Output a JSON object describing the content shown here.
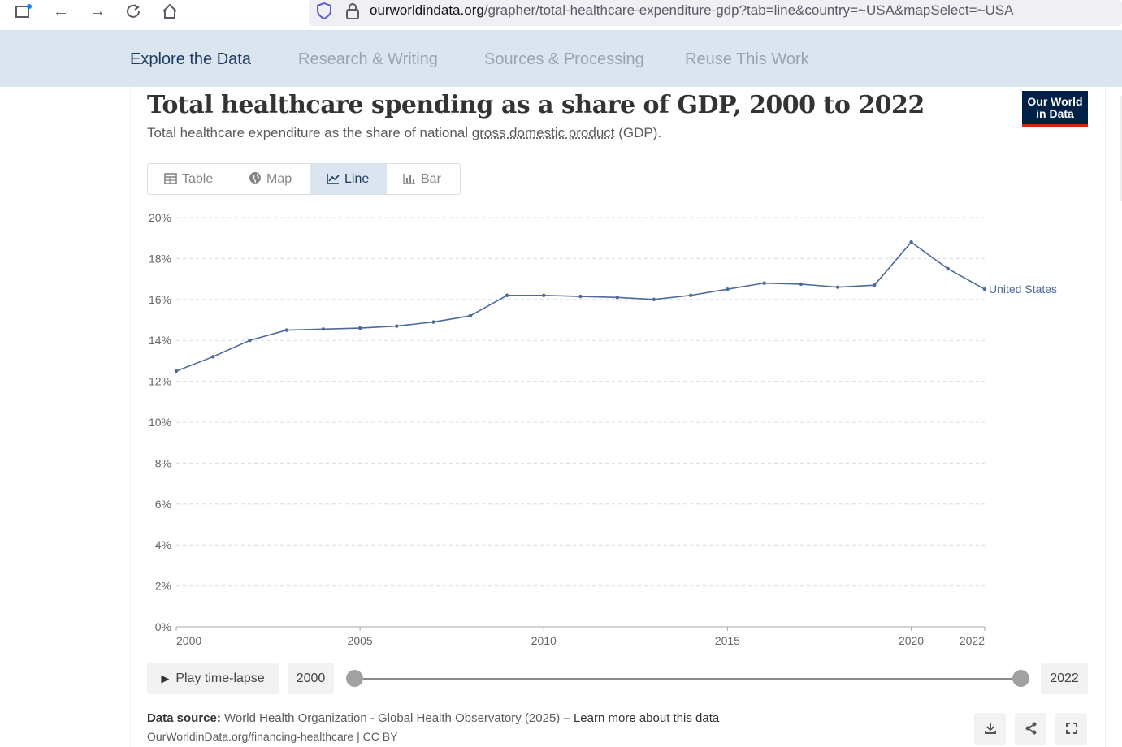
{
  "browser": {
    "url_host": "ourworldindata.org",
    "url_path": "/grapher/total-healthcare-expenditure-gdp?tab=line&country=~USA&mapSelect=~USA"
  },
  "site_nav": {
    "items": [
      {
        "label": "Explore the Data",
        "active": true
      },
      {
        "label": "Research & Writing",
        "active": false
      },
      {
        "label": "Sources & Processing",
        "active": false
      },
      {
        "label": "Reuse This Work",
        "active": false
      }
    ]
  },
  "header": {
    "title": "Total healthcare spending as a share of GDP, 2000 to 2022",
    "subtitle_pre": "Total healthcare expenditure as the share of national ",
    "subtitle_link": "gross domestic product",
    "subtitle_post": " (GDP).",
    "logo_line1": "Our World",
    "logo_line2": "in Data"
  },
  "tabs": [
    {
      "label": "Table",
      "icon": "table-icon",
      "active": false
    },
    {
      "label": "Map",
      "icon": "globe-icon",
      "active": false
    },
    {
      "label": "Line",
      "icon": "line-chart-icon",
      "active": true
    },
    {
      "label": "Bar",
      "icon": "bar-chart-icon",
      "active": false
    }
  ],
  "chart_data": {
    "type": "line",
    "title": "Total healthcare spending as a share of GDP, 2000 to 2022",
    "xlabel": "",
    "ylabel": "",
    "ylim": [
      0,
      20
    ],
    "xlim": [
      2000,
      2022
    ],
    "y_ticks": [
      0,
      2,
      4,
      6,
      8,
      10,
      12,
      14,
      16,
      18,
      20
    ],
    "y_tick_labels": [
      "0%",
      "2%",
      "4%",
      "6%",
      "8%",
      "10%",
      "12%",
      "14%",
      "16%",
      "18%",
      "20%"
    ],
    "x_ticks": [
      2000,
      2005,
      2010,
      2015,
      2020,
      2022
    ],
    "x_tick_labels": [
      "2000",
      "2005",
      "2010",
      "2015",
      "2020",
      "2022"
    ],
    "grid": true,
    "color": "#4c6a9c",
    "series": [
      {
        "name": "United States",
        "x": [
          2000,
          2001,
          2002,
          2003,
          2004,
          2005,
          2006,
          2007,
          2008,
          2009,
          2010,
          2011,
          2012,
          2013,
          2014,
          2015,
          2016,
          2017,
          2018,
          2019,
          2020,
          2021,
          2022
        ],
        "values": [
          12.5,
          13.2,
          14.0,
          14.5,
          14.55,
          14.6,
          14.7,
          14.9,
          15.2,
          16.2,
          16.2,
          16.15,
          16.1,
          16.0,
          16.2,
          16.5,
          16.8,
          16.75,
          16.6,
          16.7,
          18.8,
          17.5,
          16.5
        ]
      }
    ]
  },
  "timeline": {
    "play_label": "Play time-lapse",
    "start_year": "2000",
    "end_year": "2022"
  },
  "footer": {
    "source_label": "Data source:",
    "source_text": " World Health Organization - Global Health Observatory (2025) – ",
    "learn_more": "Learn more about this data",
    "url_line": "OurWorldinData.org/financing-healthcare | CC BY"
  }
}
